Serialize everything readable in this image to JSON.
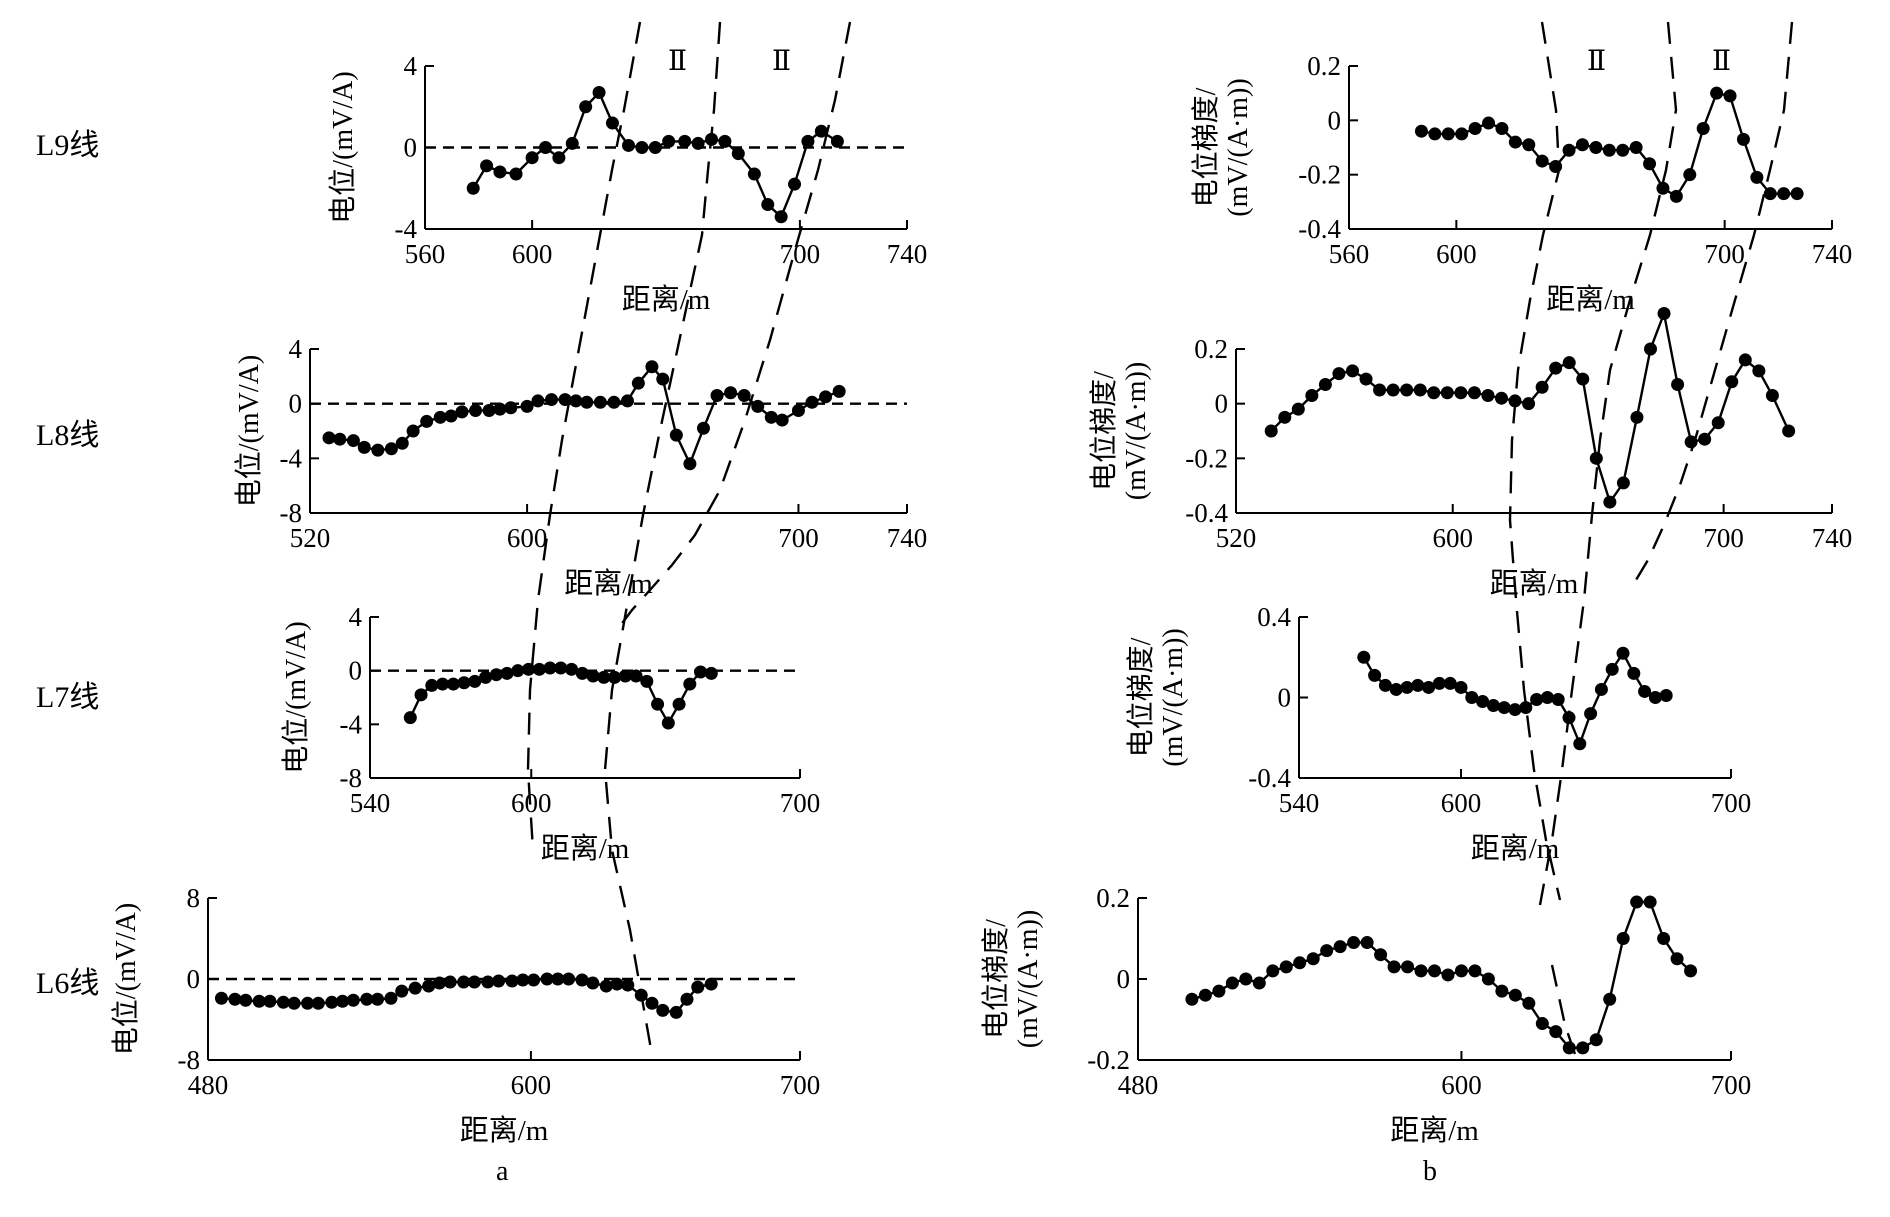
{
  "figure": {
    "panel_labels": [
      "a",
      "b"
    ],
    "row_labels": [
      "L9线",
      "L8线",
      "L7线",
      "L6线"
    ],
    "zone_label": "Ⅱ"
  },
  "chart_data": [
    {
      "id": "a-L9",
      "panel": "a",
      "row": "L9线",
      "type": "line",
      "xlabel": "距离/m",
      "ylabel": "电位/(mV/A)",
      "xlim": [
        560,
        740
      ],
      "ylim": [
        -4,
        4
      ],
      "xticks": [
        560,
        600,
        700,
        740
      ],
      "yticks": [
        4,
        0,
        -4
      ],
      "zero_line": true,
      "x": [
        578,
        583,
        588,
        594,
        600,
        605,
        610,
        615,
        620,
        625,
        630,
        636,
        641,
        646,
        651,
        657,
        662,
        667,
        672,
        677,
        683,
        688,
        693,
        698,
        703,
        708,
        714
      ],
      "y": [
        -2,
        -0.9,
        -1.2,
        -1.3,
        -0.5,
        0,
        -0.5,
        0.2,
        2,
        2.7,
        1.2,
        0.1,
        0,
        0,
        0.3,
        0.3,
        0.2,
        0.4,
        0.3,
        -0.3,
        -1.3,
        -2.8,
        -3.4,
        -1.8,
        0.3,
        0.8,
        0.3
      ]
    },
    {
      "id": "a-L8",
      "panel": "a",
      "row": "L8线",
      "type": "line",
      "xlabel": "距离/m",
      "ylabel": "电位/(mV/A)",
      "xlim": [
        520,
        740
      ],
      "ylim": [
        -8,
        4
      ],
      "xticks": [
        520,
        600,
        700,
        740
      ],
      "yticks": [
        4,
        0,
        -4,
        -8
      ],
      "zero_line": true,
      "x": [
        527,
        531,
        536,
        540,
        545,
        550,
        554,
        558,
        563,
        568,
        572,
        576,
        581,
        586,
        590,
        594,
        600,
        604,
        609,
        614,
        618,
        622,
        627,
        632,
        637,
        641,
        646,
        650,
        655,
        660,
        665,
        670,
        675,
        680,
        685,
        690,
        694,
        700,
        705,
        710,
        715
      ],
      "y": [
        -2.5,
        -2.6,
        -2.7,
        -3.2,
        -3.4,
        -3.3,
        -2.9,
        -2,
        -1.3,
        -1,
        -0.9,
        -0.6,
        -0.5,
        -0.5,
        -0.4,
        -0.3,
        -0.2,
        0.2,
        0.3,
        0.3,
        0.2,
        0.1,
        0.1,
        0.1,
        0.2,
        1.5,
        2.7,
        1.8,
        -2.3,
        -4.4,
        -1.8,
        0.6,
        0.8,
        0.6,
        -0.2,
        -1,
        -1.2,
        -0.5,
        0.1,
        0.5,
        0.9
      ]
    },
    {
      "id": "a-L7",
      "panel": "a",
      "row": "L7线",
      "type": "line",
      "xlabel": "距离/m",
      "ylabel": "电位/(mV/A)",
      "xlim": [
        540,
        700
      ],
      "ylim": [
        -8,
        4
      ],
      "xticks": [
        540,
        600,
        700
      ],
      "yticks": [
        4,
        0,
        -4,
        -8
      ],
      "zero_line": true,
      "x": [
        555,
        559,
        563,
        567,
        571,
        575,
        579,
        583,
        587,
        591,
        595,
        599,
        603,
        607,
        611,
        615,
        619,
        623,
        627,
        631,
        635,
        639,
        643,
        647,
        651,
        655,
        659,
        663,
        667
      ],
      "y": [
        -3.5,
        -1.8,
        -1.1,
        -1,
        -1,
        -0.9,
        -0.8,
        -0.5,
        -0.3,
        -0.2,
        0,
        0.1,
        0.1,
        0.2,
        0.2,
        0.1,
        -0.2,
        -0.4,
        -0.5,
        -0.5,
        -0.4,
        -0.4,
        -0.8,
        -2.5,
        -3.9,
        -2.5,
        -1,
        -0.1,
        -0.2
      ]
    },
    {
      "id": "a-L6",
      "panel": "a",
      "row": "L6线",
      "type": "line",
      "xlabel": "距离/m",
      "ylabel": "电位/(mV/A)",
      "xlim": [
        480,
        700
      ],
      "ylim": [
        -8,
        8
      ],
      "xticks": [
        480,
        600,
        700
      ],
      "yticks": [
        8,
        0,
        -8
      ],
      "zero_line": true,
      "x": [
        485,
        490,
        494,
        499,
        503,
        508,
        512,
        517,
        521,
        526,
        530,
        534,
        539,
        543,
        548,
        552,
        557,
        562,
        566,
        570,
        575,
        579,
        584,
        588,
        593,
        597,
        601,
        606,
        610,
        614,
        619,
        623,
        628,
        632,
        636,
        641,
        645,
        649,
        654,
        658,
        662,
        667
      ],
      "y": [
        -1.9,
        -2,
        -2.1,
        -2.2,
        -2.2,
        -2.3,
        -2.4,
        -2.4,
        -2.4,
        -2.3,
        -2.2,
        -2.1,
        -2,
        -2,
        -1.9,
        -1.2,
        -0.9,
        -0.7,
        -0.4,
        -0.3,
        -0.3,
        -0.3,
        -0.3,
        -0.2,
        -0.2,
        -0.1,
        -0.1,
        0,
        0,
        0,
        -0.1,
        -0.4,
        -0.7,
        -0.5,
        -0.6,
        -1.6,
        -2.4,
        -3.1,
        -3.3,
        -2,
        -0.8,
        -0.5
      ]
    },
    {
      "id": "b-L9",
      "panel": "b",
      "row": "L9线",
      "type": "line",
      "xlabel": "距离/m",
      "ylabel": [
        "电位梯度/",
        "(mV/(A·m))"
      ],
      "xlim": [
        560,
        740
      ],
      "ylim": [
        -0.4,
        0.2
      ],
      "xticks": [
        560,
        600,
        700,
        740
      ],
      "yticks": [
        0.2,
        0,
        -0.2,
        -0.4
      ],
      "zero_line": false,
      "x": [
        587,
        592,
        597,
        602,
        607,
        612,
        617,
        622,
        627,
        632,
        637,
        642,
        647,
        652,
        657,
        662,
        667,
        672,
        677,
        682,
        687,
        692,
        697,
        702,
        707,
        712,
        717,
        722,
        727
      ],
      "y": [
        -0.04,
        -0.05,
        -0.05,
        -0.05,
        -0.03,
        -0.01,
        -0.03,
        -0.08,
        -0.09,
        -0.15,
        -0.17,
        -0.11,
        -0.09,
        -0.1,
        -0.11,
        -0.11,
        -0.1,
        -0.16,
        -0.25,
        -0.28,
        -0.2,
        -0.03,
        0.1,
        0.09,
        -0.07,
        -0.21,
        -0.27,
        -0.27,
        -0.27
      ]
    },
    {
      "id": "b-L8",
      "panel": "b",
      "row": "L8线",
      "type": "line",
      "xlabel": "距离/m",
      "ylabel": [
        "电位梯度/",
        "(mV/(A·m))"
      ],
      "xlim": [
        520,
        740
      ],
      "ylim": [
        -0.4,
        0.2
      ],
      "xticks": [
        520,
        600,
        700,
        740
      ],
      "yticks": [
        0.2,
        0,
        -0.2,
        -0.4
      ],
      "zero_line": false,
      "x": [
        533,
        538,
        543,
        548,
        553,
        558,
        563,
        568,
        573,
        578,
        583,
        588,
        593,
        598,
        603,
        608,
        613,
        618,
        623,
        628,
        633,
        638,
        643,
        648,
        653,
        658,
        663,
        668,
        673,
        678,
        683,
        688,
        693,
        698,
        703,
        708,
        713,
        718,
        724
      ],
      "y": [
        -0.1,
        -0.05,
        -0.02,
        0.03,
        0.07,
        0.11,
        0.12,
        0.09,
        0.05,
        0.05,
        0.05,
        0.05,
        0.04,
        0.04,
        0.04,
        0.04,
        0.03,
        0.02,
        0.01,
        0,
        0.06,
        0.13,
        0.15,
        0.09,
        -0.2,
        -0.36,
        -0.29,
        -0.05,
        0.2,
        0.33,
        0.07,
        -0.14,
        -0.13,
        -0.07,
        0.08,
        0.16,
        0.12,
        0.03,
        -0.1
      ]
    },
    {
      "id": "b-L7",
      "panel": "b",
      "row": "L7线",
      "type": "line",
      "xlabel": "距离/m",
      "ylabel": [
        "电位梯度/",
        "(mV/(A·m))"
      ],
      "xlim": [
        540,
        700
      ],
      "ylim": [
        -0.4,
        0.4
      ],
      "xticks": [
        540,
        600,
        700
      ],
      "yticks": [
        0.4,
        0,
        -0.4
      ],
      "zero_line": false,
      "x": [
        564,
        568,
        572,
        576,
        580,
        584,
        588,
        592,
        596,
        600,
        604,
        608,
        612,
        616,
        620,
        624,
        628,
        632,
        636,
        640,
        644,
        648,
        652,
        656,
        660,
        664,
        668,
        672,
        676
      ],
      "y": [
        0.2,
        0.11,
        0.06,
        0.04,
        0.05,
        0.06,
        0.05,
        0.07,
        0.07,
        0.05,
        0,
        -0.02,
        -0.04,
        -0.05,
        -0.06,
        -0.05,
        -0.01,
        0,
        -0.01,
        -0.1,
        -0.23,
        -0.08,
        0.04,
        0.14,
        0.22,
        0.12,
        0.03,
        0,
        0.01
      ]
    },
    {
      "id": "b-L6",
      "panel": "b",
      "row": "L6线",
      "type": "line",
      "xlabel": "距离/m",
      "ylabel": [
        "电位梯度/",
        "(mV/(A·m))"
      ],
      "xlim": [
        480,
        700
      ],
      "ylim": [
        -0.2,
        0.2
      ],
      "xticks": [
        480,
        600,
        700
      ],
      "yticks": [
        0.2,
        0,
        -0.2
      ],
      "zero_line": false,
      "x": [
        500,
        505,
        510,
        515,
        520,
        525,
        530,
        535,
        540,
        545,
        550,
        555,
        560,
        565,
        570,
        575,
        580,
        585,
        590,
        595,
        600,
        605,
        610,
        615,
        620,
        625,
        630,
        635,
        640,
        645,
        650,
        655,
        660,
        665,
        670,
        675,
        680,
        685
      ],
      "y": [
        -0.05,
        -0.04,
        -0.03,
        -0.01,
        0,
        -0.01,
        0.02,
        0.03,
        0.04,
        0.05,
        0.07,
        0.08,
        0.09,
        0.09,
        0.06,
        0.03,
        0.03,
        0.02,
        0.02,
        0.01,
        0.02,
        0.02,
        0,
        -0.03,
        -0.04,
        -0.06,
        -0.11,
        -0.13,
        -0.17,
        -0.17,
        -0.15,
        -0.05,
        0.1,
        0.19,
        0.19,
        0.1,
        0.05,
        0.02
      ]
    }
  ]
}
